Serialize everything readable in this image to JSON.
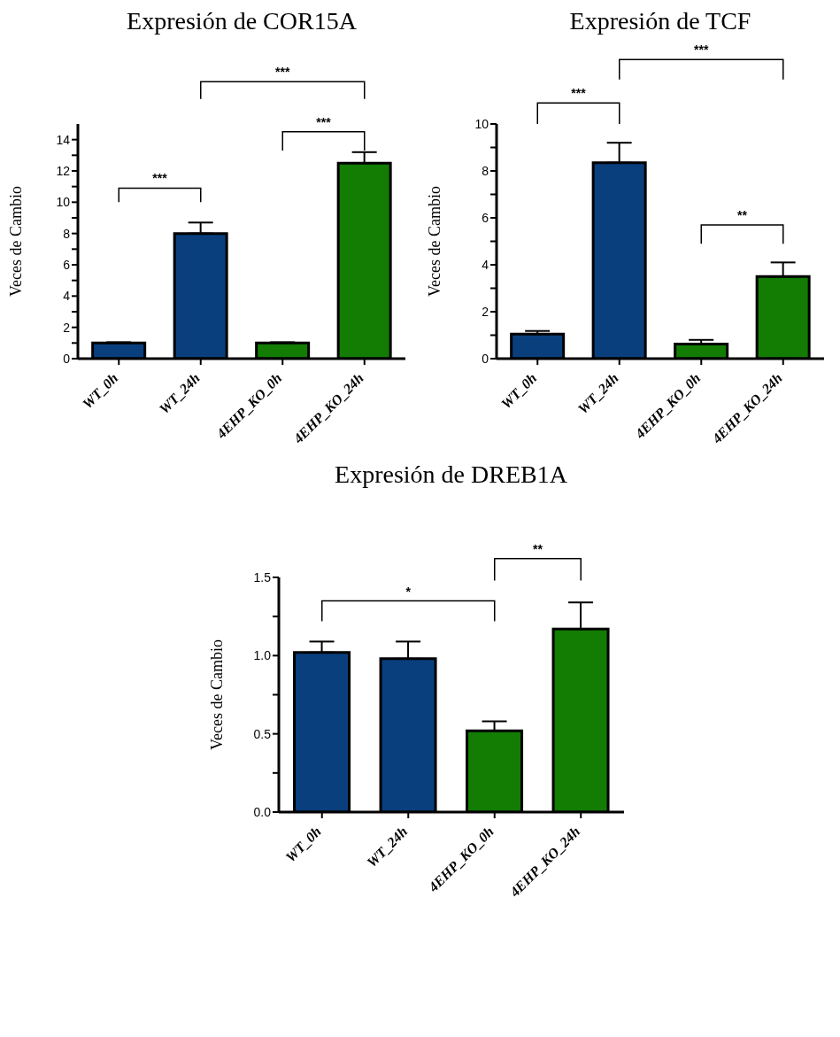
{
  "chart_data": [
    {
      "type": "bar",
      "title": "Expresión de COR15A",
      "ylabel": "Veces de Cambio",
      "categories": [
        "WT_0h",
        "WT_24h",
        "4EHP_KO_0h",
        "4EHP_KO_24h"
      ],
      "values": [
        1.0,
        8.0,
        1.0,
        12.5
      ],
      "colors": [
        "#0a3f7e",
        "#0a3f7e",
        "#127c03",
        "#127c03"
      ],
      "errors": [
        [
          1.0,
          1.05
        ],
        [
          8.0,
          8.7
        ],
        [
          1.0,
          1.05
        ],
        [
          12.5,
          13.2
        ]
      ],
      "ylim": [
        0,
        15
      ],
      "yticks": [
        0,
        {
          "value": 1,
          "label": null
        },
        2,
        {
          "value": 3,
          "label": null
        },
        4,
        {
          "value": 5,
          "label": null
        },
        6,
        {
          "value": 7,
          "label": null
        },
        8,
        {
          "value": 9,
          "label": null
        },
        10,
        {
          "value": 11,
          "label": null
        },
        12,
        {
          "value": 13,
          "label": null
        },
        14
      ],
      "grid": false,
      "legend": false,
      "annotations": [
        "***",
        "***",
        "***"
      ]
    },
    {
      "type": "bar",
      "title": "Expresión de TCF",
      "ylabel": "Veces de Cambio",
      "categories": [
        "WT_0h",
        "WT_24h",
        "4EHP_KO_0h",
        "4EHP_KO_24h"
      ],
      "values": [
        1.05,
        8.35,
        0.62,
        3.5
      ],
      "colors": [
        "#0a3f7e",
        "#0a3f7e",
        "#127c03",
        "#127c03"
      ],
      "errors": [
        [
          1.05,
          1.18
        ],
        [
          8.35,
          9.2
        ],
        [
          0.62,
          0.8
        ],
        [
          3.5,
          4.1
        ]
      ],
      "ylim": [
        0,
        10
      ],
      "yticks": [
        0,
        {
          "value": 1,
          "label": null
        },
        2,
        {
          "value": 3,
          "label": null
        },
        4,
        {
          "value": 5,
          "label": null
        },
        6,
        {
          "value": 7,
          "label": null
        },
        8,
        {
          "value": 9,
          "label": null
        },
        10
      ],
      "grid": false,
      "legend": false,
      "annotations": [
        "***",
        "***",
        "**"
      ]
    },
    {
      "type": "bar",
      "title": "Expresión de DREB1A",
      "ylabel": "Veces de Cambio",
      "categories": [
        "WT_0h",
        "WT_24h",
        "4EHP_KO_0h",
        "4EHP_KO_24h"
      ],
      "values": [
        1.02,
        0.98,
        0.52,
        1.17
      ],
      "colors": [
        "#0a3f7e",
        "#0a3f7e",
        "#127c03",
        "#127c03"
      ],
      "errors": [
        [
          1.02,
          1.09
        ],
        [
          0.98,
          1.09
        ],
        [
          0.52,
          0.58
        ],
        [
          1.17,
          1.34
        ]
      ],
      "ylim": [
        0,
        1.5
      ],
      "yticks": [
        {
          "value": 0,
          "label": "0.0"
        },
        {
          "value": 0.25,
          "label": null
        },
        {
          "value": 0.5,
          "label": "0.5"
        },
        {
          "value": 0.75,
          "label": null
        },
        {
          "value": 1,
          "label": "1.0"
        },
        {
          "value": 1.25,
          "label": null
        },
        1.5
      ],
      "grid": false,
      "legend": false,
      "annotations": [
        "**",
        "*"
      ]
    }
  ]
}
